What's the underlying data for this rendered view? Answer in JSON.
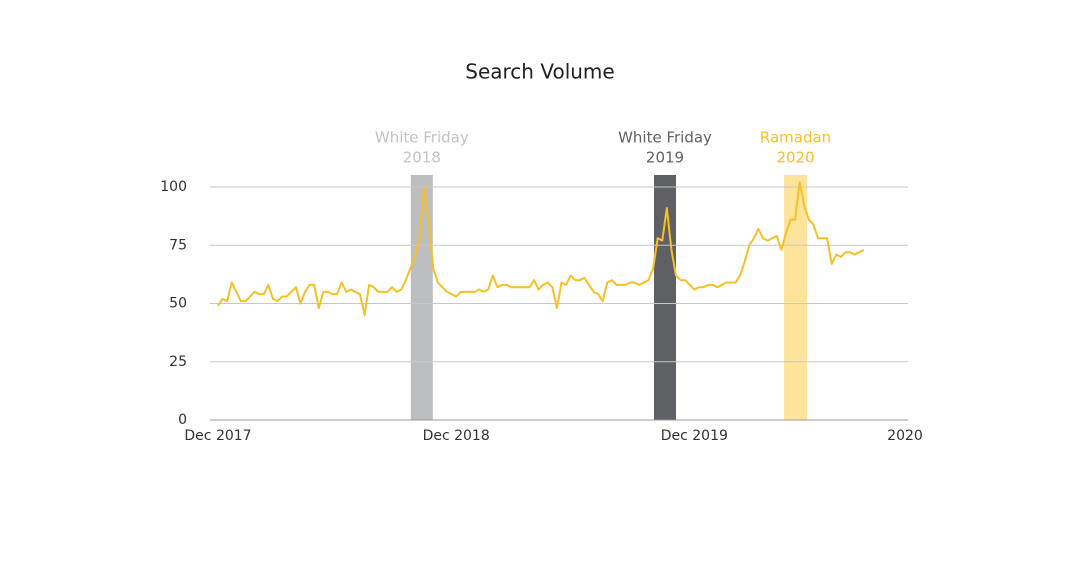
{
  "chart_data": {
    "type": "line",
    "title": "Search Volume",
    "x": [
      0,
      1,
      2,
      3,
      4,
      5,
      6,
      7,
      8,
      9,
      10,
      11,
      12,
      13,
      14,
      15,
      16,
      17,
      18,
      19,
      20,
      21,
      22,
      23,
      24,
      25,
      26,
      27,
      28,
      29,
      30,
      31,
      32,
      33,
      34,
      35,
      36,
      37,
      38,
      39,
      40,
      41,
      42,
      43,
      44,
      45,
      46,
      47,
      48,
      49,
      50,
      51,
      52,
      53,
      54,
      55,
      56,
      57,
      58,
      59,
      60,
      61,
      62,
      63,
      64,
      65,
      66,
      67,
      68,
      69,
      70,
      71,
      72,
      73,
      74,
      75,
      76,
      77,
      78,
      79,
      80,
      81,
      82,
      83,
      84,
      85,
      86,
      87,
      88,
      89,
      90,
      91,
      92,
      93,
      94,
      95,
      96,
      97,
      98,
      99,
      100,
      101,
      102,
      103,
      104,
      105,
      106,
      107,
      108,
      109,
      110,
      111,
      112,
      113,
      114,
      115,
      116,
      117,
      118,
      119,
      120,
      121,
      122,
      123,
      124,
      125,
      126,
      127,
      128,
      129,
      130,
      131,
      132,
      133,
      134,
      135,
      136,
      137,
      138,
      139,
      140,
      141
    ],
    "series": [
      {
        "color": "#f6c026",
        "values": [
          49,
          52,
          51,
          59,
          55,
          51,
          51,
          53,
          55,
          54,
          54,
          58,
          52,
          51,
          53,
          53,
          55,
          57,
          50,
          55,
          58,
          58,
          48,
          55,
          55,
          54,
          54,
          59,
          55,
          56,
          55,
          54,
          45,
          58,
          57,
          55,
          55,
          55,
          57,
          55,
          56,
          60,
          65,
          70,
          78,
          100,
          85,
          65,
          59,
          57,
          55,
          54,
          53,
          55,
          55,
          55,
          55,
          56,
          55,
          56,
          62,
          57,
          58,
          58,
          57,
          57,
          57,
          57,
          57,
          60,
          56,
          58,
          59,
          57,
          48,
          59,
          58,
          62,
          60,
          60,
          61,
          58,
          55,
          54,
          51,
          59,
          60,
          58,
          58,
          58,
          59,
          59,
          58,
          59,
          60,
          65,
          78,
          77,
          91,
          73,
          62,
          60,
          60,
          58,
          56,
          57,
          57,
          58,
          58,
          57,
          58,
          59,
          59,
          59,
          62,
          68,
          75,
          78,
          82,
          78,
          77,
          78,
          79,
          73,
          80,
          86,
          86,
          102,
          92,
          86,
          84,
          78,
          78,
          78,
          67,
          71,
          70,
          72,
          72,
          71,
          72,
          73
        ]
      }
    ],
    "xlim": [
      0,
      150
    ],
    "xticks": [
      {
        "value": 0,
        "label": "Dec 2017"
      },
      {
        "value": 52,
        "label": "Dec 2018"
      },
      {
        "value": 104,
        "label": "Dec 2019"
      },
      {
        "value": 150,
        "label": "2020"
      }
    ],
    "ylim": [
      0,
      100
    ],
    "yticks": [
      0,
      25,
      50,
      75,
      100
    ],
    "grid": true,
    "highlights": [
      {
        "label": [
          "White Friday",
          "2018"
        ],
        "start": 42.1,
        "end": 46.9,
        "color": "#bdbec0",
        "text_color": "#c4c4c4"
      },
      {
        "label": [
          "White Friday",
          "2019"
        ],
        "start": 95.2,
        "end": 100,
        "color": "#5f6063",
        "text_color": "#5f6368"
      },
      {
        "label": [
          "Ramadan",
          "2020"
        ],
        "start": 123.6,
        "end": 128.6,
        "color": "#fde49a",
        "text_color": "#f6c026"
      }
    ]
  }
}
